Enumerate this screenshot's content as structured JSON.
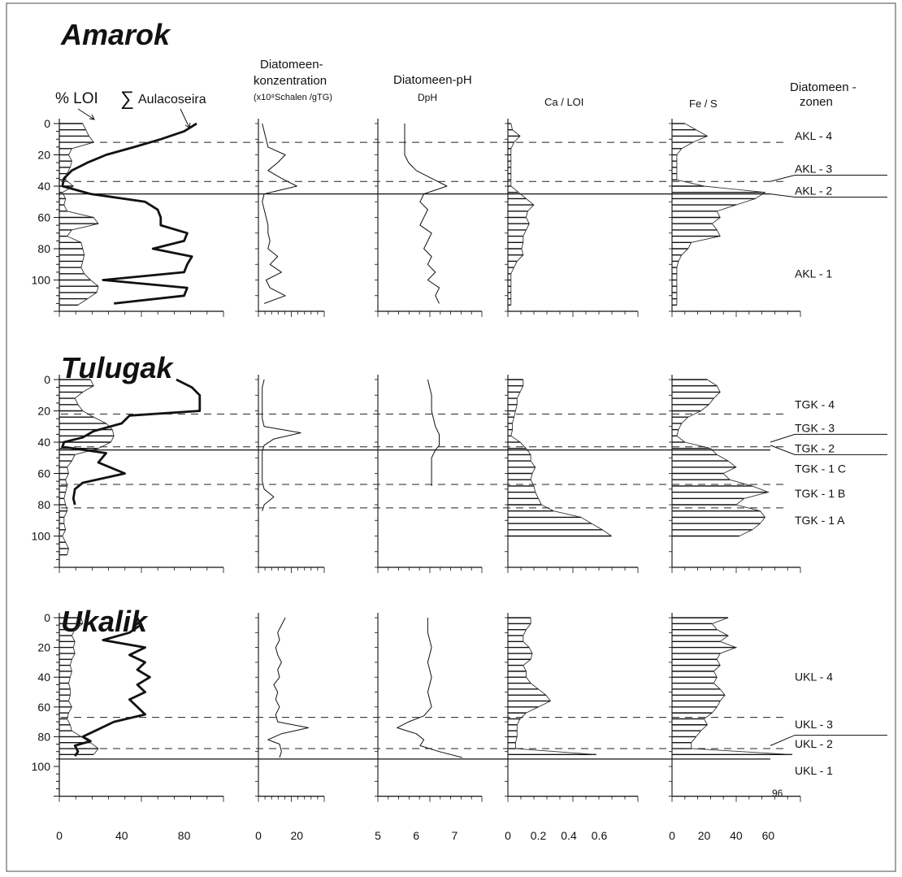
{
  "headers": {
    "loi": "% LOI",
    "sum_symbol": "∑",
    "aulacoseira": "Aulacoseira",
    "conc_line1": "Diatomeen-",
    "conc_line2": "konzentration",
    "conc_unit": "(x10⁸Schalen /gTG)",
    "ph_line1": "Diatomeen-pH",
    "ph_line2": "DpH",
    "ca": "Ca / LOI",
    "fe": "Fe / S",
    "zones_line1": "Diatomeen -",
    "zones_line2": "zonen"
  },
  "y_ticks": [
    "0",
    "20",
    "40",
    "60",
    "80",
    "100"
  ],
  "x_ticks": {
    "loi": [
      "0",
      "40",
      "80"
    ],
    "conc": [
      "0",
      "20"
    ],
    "ph": [
      "5",
      "6",
      "7"
    ],
    "ca": [
      "0",
      "0.2",
      "0.4",
      "0.6"
    ],
    "fe": [
      "0",
      "20",
      "40",
      "60"
    ]
  },
  "note_96": "96",
  "colors": {
    "line": "#111111",
    "frame": "#555555",
    "background": "#ffffff"
  },
  "chart_data": {
    "type": "line",
    "y_axis": "depth",
    "ylim": [
      0,
      120
    ],
    "columns": [
      {
        "key": "loi",
        "xlim": [
          0,
          100
        ],
        "style": "bars"
      },
      {
        "key": "aul",
        "xlim": [
          0,
          100
        ],
        "style": "bold-line"
      },
      {
        "key": "conc",
        "xlim": [
          0,
          30
        ],
        "style": "line"
      },
      {
        "key": "ph",
        "xlim": [
          5,
          7.5
        ],
        "style": "line"
      },
      {
        "key": "ca",
        "xlim": [
          0,
          0.8
        ],
        "style": "bars"
      },
      {
        "key": "fe",
        "xlim": [
          0,
          75
        ],
        "style": "bars"
      }
    ],
    "lakes": [
      {
        "name": "Amarok",
        "boundary": 45,
        "dashed": [
          12,
          37
        ],
        "zones": [
          {
            "label": "AKL - 4",
            "depth": 12
          },
          {
            "label": "AKL - 3",
            "depth": 33
          },
          {
            "label": "AKL - 2",
            "depth": 47
          },
          {
            "label": "AKL - 1",
            "depth": 100
          }
        ],
        "leader_lines": [
          [
            33,
            37
          ],
          [
            47,
            45
          ]
        ],
        "loi": {
          "depth": [
            0,
            4,
            8,
            12,
            16,
            20,
            24,
            28,
            32,
            36,
            40,
            44,
            48,
            52,
            56,
            60,
            64,
            68,
            72,
            76,
            80,
            84,
            88,
            92,
            96,
            100,
            104,
            108,
            112,
            116
          ],
          "value": [
            15,
            17,
            19,
            22,
            8,
            6,
            8,
            7,
            5,
            4,
            9,
            2,
            4,
            3,
            5,
            22,
            25,
            8,
            5,
            14,
            15,
            16,
            15,
            14,
            16,
            20,
            25,
            24,
            18,
            12
          ]
        },
        "aul": {
          "depth": [
            0,
            5,
            10,
            15,
            20,
            25,
            30,
            35,
            40,
            45,
            50,
            55,
            60,
            65,
            70,
            75,
            80,
            85,
            90,
            95,
            100,
            105,
            110,
            115
          ],
          "value": [
            88,
            80,
            65,
            48,
            30,
            18,
            8,
            3,
            2,
            20,
            55,
            63,
            65,
            65,
            82,
            80,
            60,
            85,
            82,
            80,
            28,
            82,
            80,
            35
          ]
        },
        "conc": {
          "depth": [
            0,
            5,
            10,
            15,
            20,
            25,
            30,
            35,
            40,
            45,
            50,
            55,
            60,
            65,
            70,
            75,
            80,
            85,
            90,
            95,
            100,
            105,
            110,
            115
          ],
          "value": [
            2,
            3,
            4,
            5,
            14,
            10,
            5,
            12,
            20,
            3,
            2,
            3,
            4,
            5,
            5,
            6,
            5,
            10,
            6,
            12,
            4,
            6,
            14,
            3
          ]
        },
        "ph": {
          "depth": [
            0,
            5,
            10,
            15,
            20,
            25,
            30,
            35,
            40,
            45,
            50,
            55,
            60,
            65,
            70,
            75,
            80,
            85,
            90,
            95,
            100,
            105,
            110,
            115
          ],
          "value": [
            5.7,
            5.7,
            5.7,
            5.7,
            5.7,
            5.8,
            6.0,
            6.4,
            6.8,
            6.2,
            6.1,
            6.3,
            6.2,
            6.1,
            6.4,
            6.3,
            6.2,
            6.4,
            6.3,
            6.5,
            6.3,
            6.6,
            6.5,
            6.6
          ]
        },
        "ca": {
          "depth": [
            0,
            4,
            8,
            12,
            16,
            20,
            24,
            28,
            32,
            36,
            40,
            44,
            48,
            52,
            56,
            60,
            64,
            68,
            72,
            76,
            80,
            84,
            88,
            92,
            96,
            100,
            104,
            108,
            112,
            116
          ],
          "value": [
            0.02,
            0.03,
            0.08,
            0.04,
            0.02,
            0.02,
            0.02,
            0.02,
            0.02,
            0.02,
            0.02,
            0.07,
            0.12,
            0.17,
            0.13,
            0.12,
            0.14,
            0.12,
            0.1,
            0.1,
            0.09,
            0.1,
            0.06,
            0.04,
            0.02,
            0.02,
            0.02,
            0.02,
            0.02,
            0.02
          ]
        },
        "fe": {
          "depth": [
            0,
            4,
            8,
            12,
            16,
            20,
            24,
            28,
            32,
            36,
            40,
            44,
            48,
            52,
            56,
            60,
            64,
            68,
            72,
            76,
            80,
            84,
            88,
            92,
            96,
            100,
            104,
            108,
            112,
            116
          ],
          "value": [
            8,
            15,
            22,
            13,
            6,
            3,
            3,
            3,
            3,
            3,
            20,
            58,
            52,
            40,
            28,
            30,
            25,
            28,
            30,
            12,
            10,
            6,
            4,
            3,
            3,
            3,
            3,
            3,
            3,
            3
          ]
        }
      },
      {
        "name": "Tulugak",
        "boundary": 45,
        "dashed": [
          22,
          43,
          67,
          82
        ],
        "zones": [
          {
            "label": "TGK - 4",
            "depth": 20
          },
          {
            "label": "TGK - 3",
            "depth": 35
          },
          {
            "label": "TGK - 2",
            "depth": 48
          },
          {
            "label": "TGK - 1 C",
            "depth": 61
          },
          {
            "label": "TGK - 1 B",
            "depth": 77
          },
          {
            "label": "TGK - 1 A",
            "depth": 94
          }
        ],
        "leader_lines": [
          [
            35,
            40
          ],
          [
            48,
            42
          ]
        ],
        "loi": {
          "depth": [
            0,
            4,
            8,
            12,
            16,
            20,
            24,
            28,
            32,
            36,
            40,
            44,
            48,
            52,
            56,
            60,
            64,
            68,
            72,
            76,
            80,
            84,
            88,
            92,
            96,
            100,
            104,
            108,
            112
          ],
          "value": [
            20,
            22,
            15,
            10,
            12,
            15,
            22,
            30,
            34,
            35,
            33,
            25,
            10,
            8,
            5,
            6,
            4,
            5,
            4,
            3,
            4,
            5,
            3,
            3,
            4,
            2,
            4,
            6,
            5
          ]
        },
        "aul": {
          "depth": [
            0,
            5,
            10,
            15,
            20,
            23,
            28,
            33,
            37,
            40,
            43,
            47,
            53,
            60,
            66,
            70,
            76,
            80
          ],
          "value": [
            75,
            85,
            90,
            90,
            90,
            45,
            40,
            22,
            15,
            3,
            2,
            30,
            25,
            42,
            15,
            10,
            9,
            10
          ]
        },
        "conc": {
          "depth": [
            0,
            5,
            10,
            15,
            20,
            25,
            30,
            34,
            38,
            42,
            46,
            50,
            55,
            60,
            65,
            70,
            75,
            80,
            84
          ],
          "value": [
            3,
            2,
            2,
            2,
            2,
            2,
            3,
            22,
            8,
            3,
            2,
            2,
            2,
            2,
            2,
            3,
            8,
            3,
            2
          ]
        },
        "ph": {
          "depth": [
            0,
            10,
            20,
            30,
            35,
            40,
            42,
            45,
            50,
            60,
            68
          ],
          "value": [
            6.3,
            6.4,
            6.4,
            6.5,
            6.6,
            6.6,
            6.6,
            6.5,
            6.4,
            6.4,
            6.4
          ]
        },
        "ca": {
          "depth": [
            0,
            4,
            8,
            12,
            16,
            20,
            24,
            28,
            32,
            36,
            40,
            44,
            48,
            52,
            56,
            60,
            64,
            68,
            72,
            76,
            80,
            84,
            88,
            92,
            96,
            100
          ],
          "value": [
            0.1,
            0.1,
            0.08,
            0.06,
            0.06,
            0.05,
            0.04,
            0.03,
            0.03,
            0.02,
            0.08,
            0.12,
            0.15,
            0.15,
            0.18,
            0.16,
            0.15,
            0.17,
            0.18,
            0.2,
            0.22,
            0.3,
            0.48,
            0.55,
            0.62,
            0.68
          ]
        },
        "fe": {
          "depth": [
            0,
            4,
            8,
            12,
            16,
            20,
            24,
            28,
            32,
            36,
            40,
            44,
            48,
            52,
            56,
            60,
            64,
            68,
            72,
            76,
            80,
            84,
            88,
            92,
            96,
            100
          ],
          "value": [
            22,
            28,
            30,
            26,
            23,
            18,
            10,
            6,
            4,
            3,
            8,
            24,
            28,
            35,
            40,
            32,
            36,
            50,
            60,
            45,
            40,
            55,
            58,
            55,
            50,
            42
          ]
        }
      },
      {
        "name": "Ukalik",
        "boundary": 95,
        "dashed": [
          67,
          88
        ],
        "zones": [
          {
            "label": "UKL - 4",
            "depth": 44
          },
          {
            "label": "UKL - 3",
            "depth": 76
          },
          {
            "label": "UKL - 2",
            "depth": 89
          },
          {
            "label": "UKL - 1",
            "depth": 107
          }
        ],
        "leader_lines": [
          [
            79,
            86
          ]
        ],
        "loi": {
          "depth": [
            0,
            4,
            8,
            12,
            16,
            20,
            24,
            28,
            32,
            36,
            40,
            44,
            48,
            52,
            56,
            60,
            64,
            68,
            72,
            76,
            80,
            84,
            88,
            92
          ],
          "value": [
            14,
            15,
            10,
            8,
            10,
            9,
            10,
            8,
            7,
            8,
            7,
            6,
            7,
            7,
            6,
            8,
            6,
            5,
            7,
            8,
            14,
            20,
            25,
            22
          ]
        },
        "aul": {
          "depth": [
            0,
            5,
            10,
            15,
            20,
            25,
            30,
            35,
            40,
            45,
            50,
            55,
            60,
            65,
            70,
            75,
            80,
            83,
            86,
            90,
            93
          ],
          "value": [
            50,
            52,
            45,
            28,
            55,
            45,
            55,
            50,
            58,
            50,
            55,
            45,
            50,
            55,
            35,
            25,
            15,
            20,
            10,
            12,
            10
          ]
        },
        "conc": {
          "depth": [
            0,
            5,
            10,
            15,
            20,
            25,
            30,
            35,
            40,
            45,
            50,
            55,
            60,
            65,
            70,
            74,
            78,
            82,
            85,
            90,
            94
          ],
          "value": [
            14,
            12,
            10,
            11,
            9,
            10,
            12,
            10,
            11,
            8,
            10,
            9,
            11,
            9,
            10,
            26,
            12,
            5,
            11,
            12,
            11
          ]
        },
        "ph": {
          "depth": [
            0,
            10,
            20,
            30,
            40,
            50,
            60,
            66,
            70,
            74,
            78,
            82,
            86,
            90,
            94
          ],
          "value": [
            6.3,
            6.3,
            6.4,
            6.3,
            6.4,
            6.3,
            6.4,
            6.2,
            5.8,
            5.5,
            6.0,
            6.2,
            6.1,
            6.6,
            7.2
          ]
        },
        "ca": {
          "depth": [
            0,
            4,
            8,
            12,
            16,
            20,
            24,
            28,
            32,
            36,
            40,
            44,
            48,
            52,
            56,
            60,
            64,
            68,
            72,
            76,
            80,
            84,
            88,
            92
          ],
          "value": [
            0.15,
            0.15,
            0.12,
            0.1,
            0.1,
            0.14,
            0.16,
            0.15,
            0.1,
            0.12,
            0.12,
            0.15,
            0.2,
            0.25,
            0.28,
            0.2,
            0.12,
            0.08,
            0.06,
            0.06,
            0.06,
            0.05,
            0.05,
            0.58
          ]
        },
        "fe": {
          "depth": [
            0,
            4,
            8,
            12,
            16,
            20,
            24,
            28,
            32,
            36,
            40,
            44,
            48,
            52,
            56,
            60,
            64,
            68,
            72,
            76,
            80,
            84,
            88,
            92
          ],
          "value": [
            35,
            25,
            28,
            35,
            30,
            40,
            30,
            28,
            30,
            26,
            28,
            26,
            30,
            33,
            30,
            28,
            25,
            20,
            22,
            18,
            15,
            12,
            12,
            75
          ]
        }
      }
    ]
  }
}
